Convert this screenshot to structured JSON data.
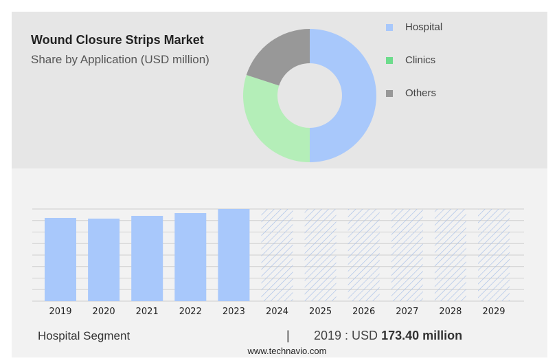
{
  "chart_data": [
    {
      "type": "pie",
      "title": "Wound Closure Strips Market",
      "subtitle": "Share by Application (USD million)",
      "legend_position": "right",
      "slices": [
        {
          "name": "Hospital",
          "value": 50,
          "color": "#a8c8fb"
        },
        {
          "name": "Clinics",
          "value": 30,
          "color": "#b4eeb8",
          "legend_color": "#6ddc8c"
        },
        {
          "name": "Others",
          "value": 20,
          "color": "#989898"
        }
      ]
    },
    {
      "type": "bar",
      "categories": [
        "2019",
        "2020",
        "2021",
        "2022",
        "2023",
        "2024",
        "2025",
        "2026",
        "2027",
        "2028",
        "2029"
      ],
      "values": [
        173.4,
        172.0,
        177.7,
        183.4,
        192.0,
        null,
        null,
        null,
        null,
        null,
        null
      ],
      "forecast_from": "2024",
      "bar_color": "#a8c8fb",
      "forecast_style": "hatched",
      "ylim": [
        0,
        192
      ],
      "grid": true,
      "xlabel": "",
      "ylabel": ""
    }
  ],
  "footer": {
    "segment": "Hospital Segment",
    "separator": "|",
    "year_label": "2019 : USD",
    "value": "173.40 million",
    "source": "www.technavio.com"
  }
}
